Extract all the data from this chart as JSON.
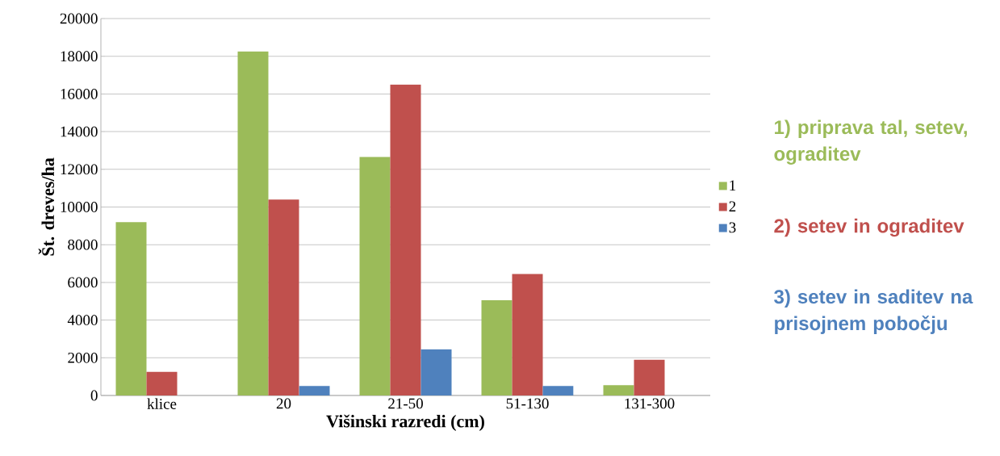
{
  "chart_data": {
    "type": "bar",
    "xlabel": "Višinski razredi (cm)",
    "ylabel": "Št. dreves/ha",
    "categories": [
      "klice",
      "20",
      "21-50",
      "51-130",
      "131-300"
    ],
    "series": [
      {
        "name": "1",
        "color": "#9bbb59",
        "values": [
          9200,
          18250,
          12650,
          5050,
          550
        ]
      },
      {
        "name": "2",
        "color": "#c0504d",
        "values": [
          1250,
          10400,
          16500,
          6450,
          1900
        ]
      },
      {
        "name": "3",
        "color": "#4f81bd",
        "values": [
          null,
          500,
          2450,
          500,
          null
        ]
      }
    ],
    "ylim": [
      0,
      20000
    ],
    "yticks": [
      0,
      2000,
      4000,
      6000,
      8000,
      10000,
      12000,
      14000,
      16000,
      18000,
      20000
    ],
    "grid": "y",
    "legend": "right",
    "annotations": [
      "1) priprava tal, setev, ograditev",
      "2) setev in ograditev",
      "3) setev in saditev na prisojnem pobočju"
    ]
  }
}
